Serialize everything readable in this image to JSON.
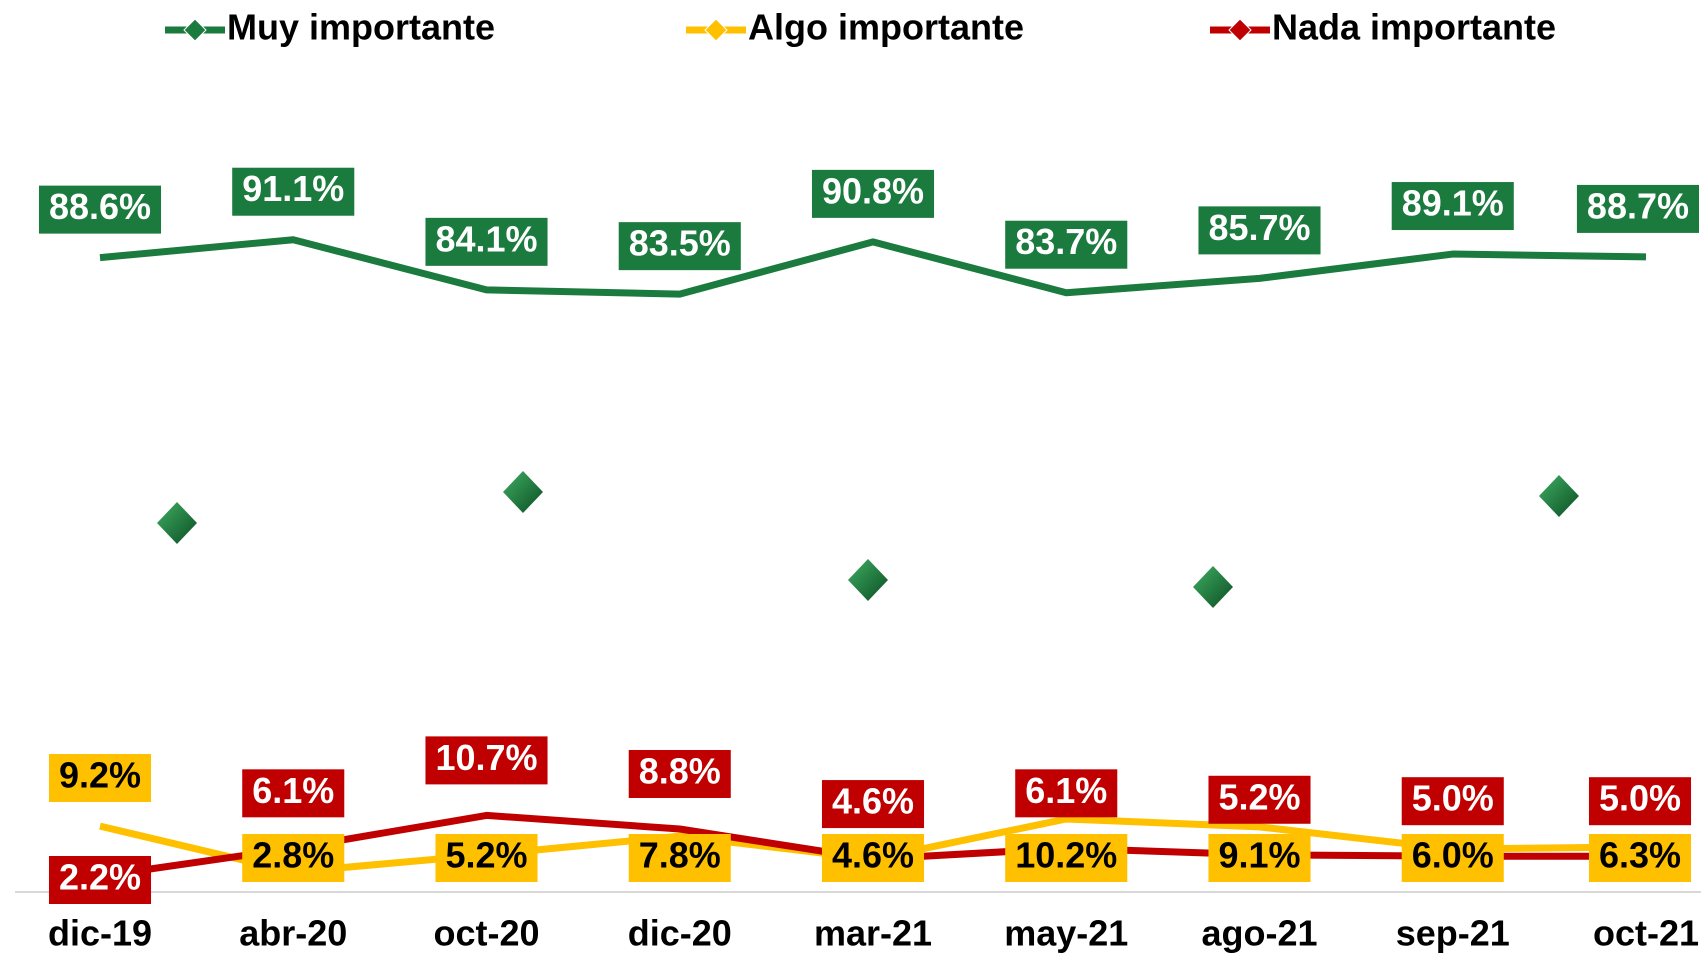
{
  "chart_data": {
    "type": "line",
    "categories": [
      "dic-19",
      "abr-20",
      "oct-20",
      "dic-20",
      "mar-21",
      "may-21",
      "ago-21",
      "sep-21",
      "oct-21"
    ],
    "ylim": [
      0,
      100
    ],
    "series": [
      {
        "name": "Muy importante",
        "color": "#1b7a3d",
        "values": [
          88.6,
          91.1,
          84.1,
          83.5,
          90.8,
          83.7,
          85.7,
          89.1,
          88.7
        ],
        "value_labels": [
          "88.6%",
          "91.1%",
          "84.1%",
          "83.5%",
          "90.8%",
          "83.7%",
          "85.7%",
          "89.1%",
          "88.7%"
        ]
      },
      {
        "name": "Algo importante",
        "color": "#ffc000",
        "values": [
          9.2,
          2.8,
          5.2,
          7.8,
          4.6,
          10.2,
          9.1,
          6.0,
          6.3
        ],
        "value_labels": [
          "9.2%",
          "2.8%",
          "5.2%",
          "7.8%",
          "4.6%",
          "10.2%",
          "9.1%",
          "6.0%",
          "6.3%"
        ]
      },
      {
        "name": "Nada importante",
        "color": "#c00000",
        "values": [
          2.2,
          6.1,
          10.7,
          8.8,
          4.6,
          6.1,
          5.2,
          5.0,
          5.0
        ],
        "value_labels": [
          "2.2%",
          "6.1%",
          "10.7%",
          "8.8%",
          "4.6%",
          "6.1%",
          "5.2%",
          "5.0%",
          "5.0%"
        ]
      }
    ]
  }
}
